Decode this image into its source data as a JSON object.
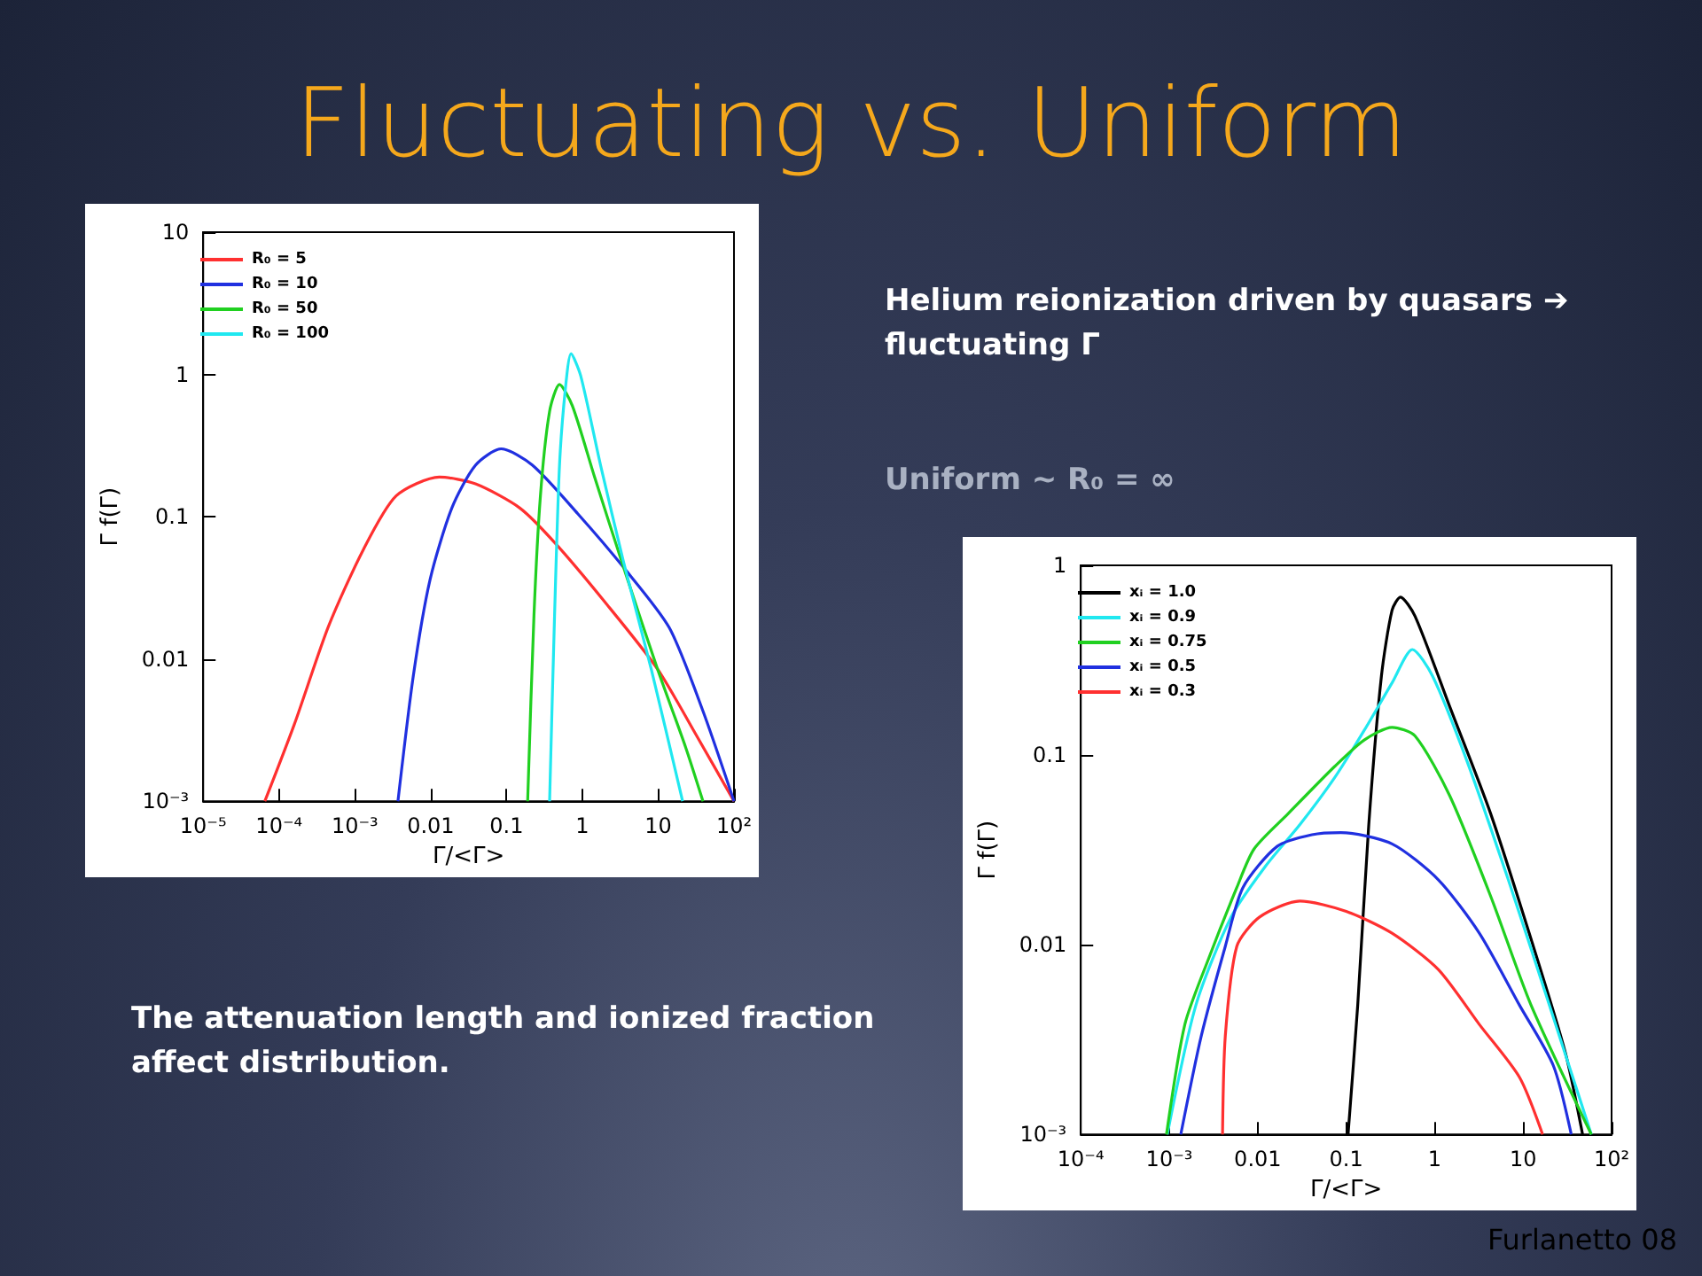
{
  "chart_data": [
    {
      "type": "other",
      "title": "Fluctuating vs. Uniform",
      "annotations": [
        "Helium reionization driven by quasars ➔ fluctuating Γ",
        "Uniform ~ R₀ = ∞",
        "The attenuation length and ionized fraction affect distribution.",
        "Furlanetto 08"
      ]
    },
    {
      "type": "line",
      "xlabel": "Γ/<Γ>",
      "ylabel": "Γ f(Γ)",
      "log": "xy",
      "xlim": [
        1e-05,
        100
      ],
      "ylim": [
        0.001,
        10
      ],
      "xticks": [
        {
          "value": 1e-05,
          "label": "10⁻⁵"
        },
        {
          "value": 0.0001,
          "label": "10⁻⁴"
        },
        {
          "value": 0.001,
          "label": "10⁻³"
        },
        0.01,
        0.1,
        1,
        10,
        {
          "value": 100,
          "label": "10²"
        }
      ],
      "yticks": [
        {
          "value": 0.001,
          "label": "10⁻³"
        },
        0.01,
        0.1,
        1,
        10
      ],
      "grid": false,
      "legend": "top left",
      "marker": "none",
      "series": [
        {
          "name": "R₀ = 5",
          "color": "#ff3030",
          "x": [
            6.5e-05,
            0.00016,
            0.00045,
            0.0013,
            0.0035,
            0.013,
            0.039,
            0.15,
            0.44,
            2.0,
            9.8,
            32,
            100
          ],
          "values": [
            0.001,
            0.0035,
            0.017,
            0.059,
            0.14,
            0.19,
            0.17,
            0.115,
            0.065,
            0.025,
            0.0085,
            0.0029,
            0.001
          ]
        },
        {
          "name": "R₀ = 10",
          "color": "#2030e0",
          "x": [
            0.0037,
            0.0059,
            0.0098,
            0.019,
            0.039,
            0.085,
            0.22,
            0.87,
            3.5,
            14,
            39,
            100
          ],
          "values": [
            0.001,
            0.0076,
            0.036,
            0.115,
            0.23,
            0.3,
            0.23,
            0.105,
            0.044,
            0.0166,
            0.0043,
            0.001
          ]
        },
        {
          "name": "R₀ = 50",
          "color": "#20d020",
          "x": [
            0.19,
            0.23,
            0.28,
            0.37,
            0.5,
            0.74,
            1.45,
            3.5,
            9.8,
            23,
            39
          ],
          "values": [
            0.001,
            0.02,
            0.14,
            0.55,
            0.85,
            0.6,
            0.19,
            0.044,
            0.0085,
            0.0024,
            0.001
          ]
        },
        {
          "name": "R₀ = 100",
          "color": "#20e8f0",
          "x": [
            0.37,
            0.43,
            0.5,
            0.6,
            0.71,
            0.95,
            1.74,
            3.5,
            8.1,
            21
          ],
          "values": [
            0.001,
            0.02,
            0.23,
            0.81,
            1.4,
            0.98,
            0.23,
            0.048,
            0.0085,
            0.001
          ]
        }
      ]
    },
    {
      "type": "line",
      "xlabel": "Γ/<Γ>",
      "ylabel": "Γ f(Γ)",
      "log": "xy",
      "xlim": [
        0.0001,
        100
      ],
      "ylim": [
        0.001,
        1
      ],
      "xticks": [
        {
          "value": 0.0001,
          "label": "10⁻⁴"
        },
        {
          "value": 0.001,
          "label": "10⁻³"
        },
        0.01,
        0.1,
        1,
        10,
        {
          "value": 100,
          "label": "10²"
        }
      ],
      "yticks": [
        {
          "value": 0.001,
          "label": "10⁻³"
        },
        0.01,
        0.1,
        1
      ],
      "grid": false,
      "legend": "top left",
      "marker": "none",
      "series": [
        {
          "name": "xᵢ = 1.0",
          "color": "#000000",
          "x": [
            0.105,
            0.135,
            0.18,
            0.25,
            0.33,
            0.41,
            0.6,
            1.48,
            4.3,
            12.3,
            30,
            47
          ],
          "values": [
            0.001,
            0.0048,
            0.043,
            0.26,
            0.58,
            0.68,
            0.54,
            0.18,
            0.049,
            0.0107,
            0.0027,
            0.001
          ]
        },
        {
          "name": "xᵢ = 0.9",
          "color": "#20e8f0",
          "x": [
            0.00095,
            0.002,
            0.005,
            0.0123,
            0.03,
            0.074,
            0.16,
            0.33,
            0.56,
            0.95,
            2.3,
            6.8,
            19,
            59
          ],
          "values": [
            0.001,
            0.0048,
            0.014,
            0.026,
            0.043,
            0.076,
            0.135,
            0.24,
            0.36,
            0.26,
            0.094,
            0.022,
            0.0051,
            0.001
          ]
        },
        {
          "name": "xᵢ = 0.75",
          "color": "#20d020",
          "x": [
            0.00093,
            0.0015,
            0.0028,
            0.0058,
            0.0091,
            0.022,
            0.074,
            0.16,
            0.33,
            0.6,
            1.48,
            4.3,
            12.3,
            59
          ],
          "values": [
            0.001,
            0.0038,
            0.0085,
            0.02,
            0.032,
            0.049,
            0.087,
            0.12,
            0.14,
            0.126,
            0.061,
            0.018,
            0.0048,
            0.001
          ]
        },
        {
          "name": "xᵢ = 0.5",
          "color": "#2030e0",
          "x": [
            0.00135,
            0.0023,
            0.0043,
            0.0068,
            0.0166,
            0.041,
            0.087,
            0.33,
            1.1,
            3.2,
            9.1,
            22,
            35
          ],
          "values": [
            0.001,
            0.0033,
            0.0098,
            0.02,
            0.033,
            0.038,
            0.039,
            0.034,
            0.022,
            0.0115,
            0.0048,
            0.0023,
            0.001
          ]
        },
        {
          "name": "xᵢ = 0.3",
          "color": "#ff3030",
          "x": [
            0.004,
            0.0043,
            0.0058,
            0.0105,
            0.03,
            0.1,
            0.33,
            1.1,
            3.2,
            9.1,
            16.6
          ],
          "values": [
            0.001,
            0.0033,
            0.0098,
            0.014,
            0.017,
            0.015,
            0.0115,
            0.0074,
            0.0038,
            0.002,
            0.001
          ]
        }
      ]
    }
  ]
}
